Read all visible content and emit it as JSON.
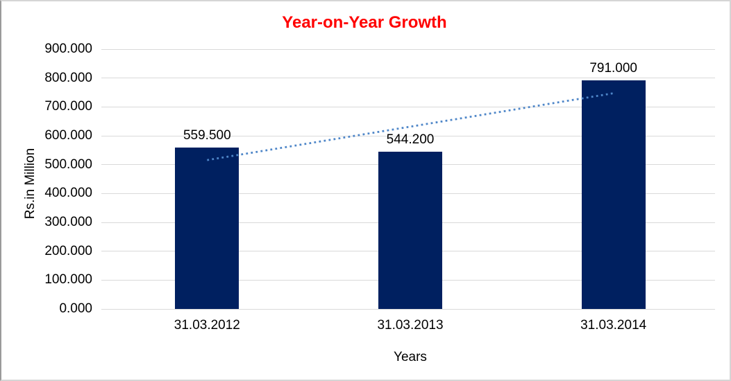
{
  "chart_data": {
    "type": "bar",
    "title": "Year-on-Year Growth",
    "title_color": "#FF0000",
    "xlabel": "Years",
    "ylabel": "Rs.in Million",
    "categories": [
      "31.03.2012",
      "31.03.2013",
      "31.03.2014"
    ],
    "values": [
      559.5,
      544.2,
      791.0
    ],
    "value_labels": [
      "559.500",
      "544.200",
      "791.000"
    ],
    "ylim": [
      0,
      900
    ],
    "ytick_values": [
      0,
      100,
      200,
      300,
      400,
      500,
      600,
      700,
      800,
      900
    ],
    "ytick_labels": [
      "0.000",
      "100.000",
      "200.000",
      "300.000",
      "400.000",
      "500.000",
      "600.000",
      "700.000",
      "800.000",
      "900.000"
    ],
    "bar_color": "#002060",
    "gridline_color": "#d9d9d9",
    "text_color": "#000000",
    "grid": true,
    "legend": "none",
    "trendline": {
      "type": "linear",
      "style": "dotted",
      "color": "#4E86C8"
    }
  }
}
